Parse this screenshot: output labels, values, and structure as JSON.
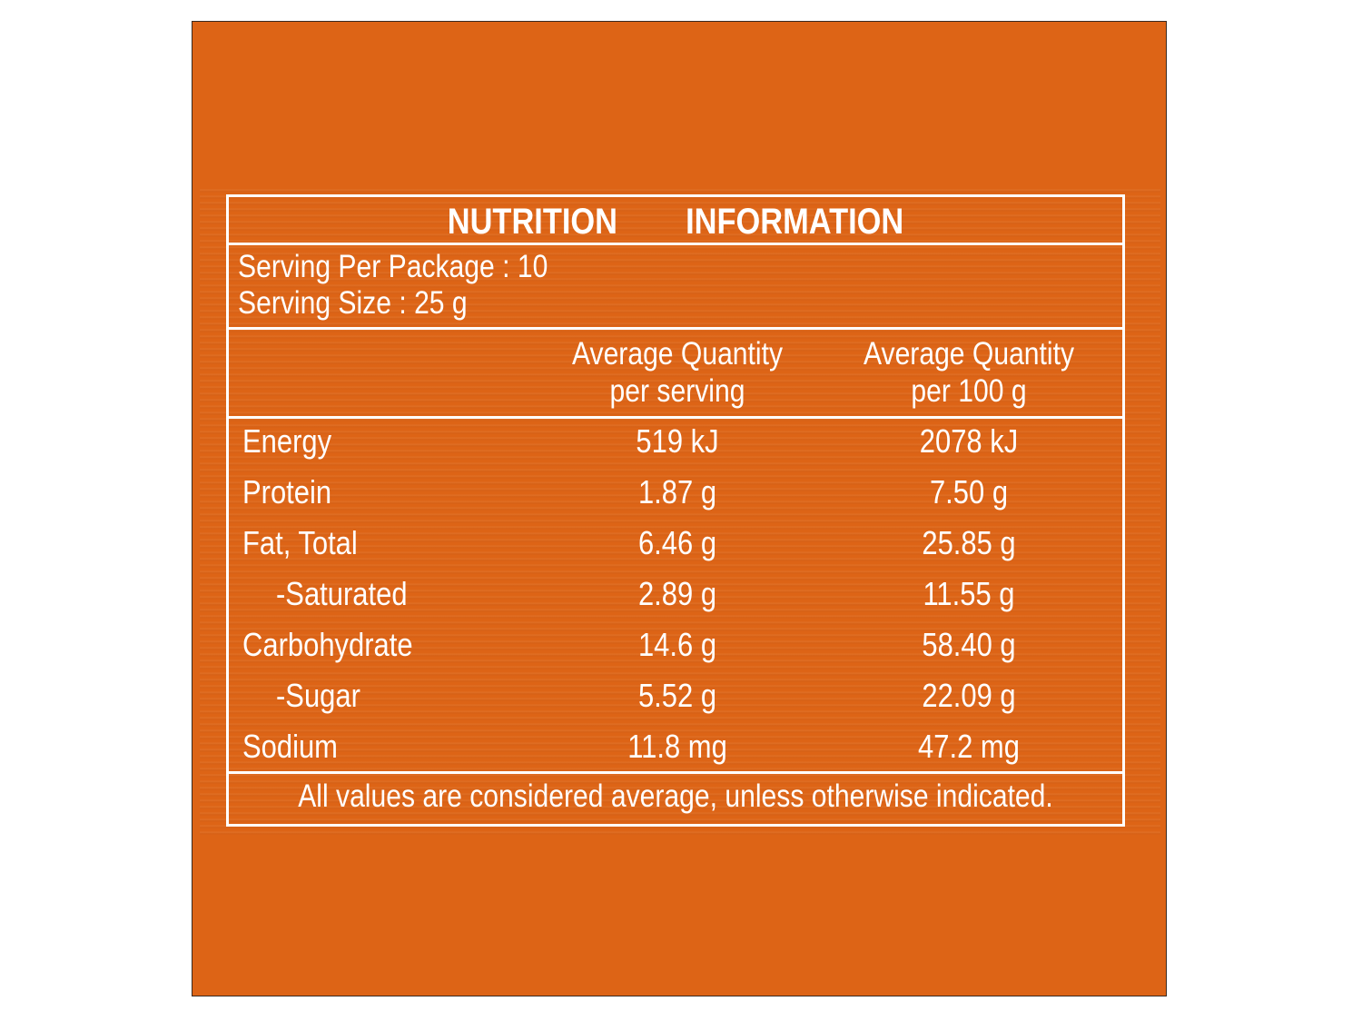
{
  "label": {
    "title": "NUTRITION   INFORMATION",
    "servings_per_package": "Serving Per Package : 10",
    "serving_size": "Serving Size : 25 g",
    "column_headers": [
      {
        "line1": "Average Quantity",
        "line2": "per serving"
      },
      {
        "line1": "Average Quantity",
        "line2": "per 100 g"
      }
    ],
    "rows": [
      {
        "name": "Energy",
        "per_serving": "519 kJ",
        "per_100g": "2078 kJ",
        "sub": false
      },
      {
        "name": "Protein",
        "per_serving": "1.87 g",
        "per_100g": "7.50 g",
        "sub": false
      },
      {
        "name": "Fat, Total",
        "per_serving": "6.46 g",
        "per_100g": "25.85 g",
        "sub": false
      },
      {
        "name": "-Saturated",
        "per_serving": "2.89 g",
        "per_100g": "11.55 g",
        "sub": true
      },
      {
        "name": "Carbohydrate",
        "per_serving": "14.6 g",
        "per_100g": "58.40 g",
        "sub": false
      },
      {
        "name": "-Sugar",
        "per_serving": "5.52 g",
        "per_100g": "22.09 g",
        "sub": true
      },
      {
        "name": "Sodium",
        "per_serving": "11.8 mg",
        "per_100g": "47.2 mg",
        "sub": false
      }
    ],
    "footnote": "All values are considered average, unless otherwise indicated."
  },
  "colors": {
    "background": "#dd6416",
    "text": "#ffffff",
    "border": "#ffffff"
  }
}
